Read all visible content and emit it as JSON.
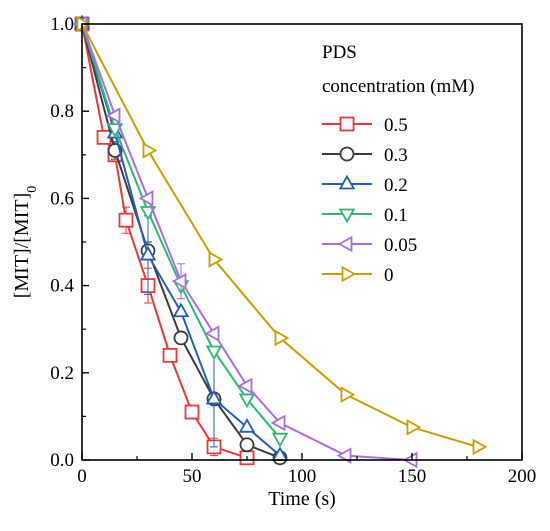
{
  "chart_data": {
    "type": "line",
    "xlabel": "Time (s)",
    "ylabel_main": "[MIT]/[MIT]",
    "ylabel_sub": "0",
    "xlim": [
      0,
      200
    ],
    "ylim": [
      0,
      1.0
    ],
    "xticks": [
      0,
      50,
      100,
      150,
      200
    ],
    "yticks": [
      0.0,
      0.2,
      0.4,
      0.6,
      0.8,
      1.0
    ],
    "ytick_labels": [
      "0.0",
      "0.2",
      "0.4",
      "0.6",
      "0.8",
      "1.0"
    ],
    "legend": {
      "title_line1": "PDS",
      "title_line2": "concentration (mM)",
      "position": "top-right"
    },
    "series": [
      {
        "name": "0.5",
        "color": "#e8383b",
        "marker": "square",
        "x": [
          0,
          10,
          15,
          20,
          30,
          40,
          50,
          60,
          75
        ],
        "y": [
          1.0,
          0.74,
          0.7,
          0.55,
          0.4,
          0.24,
          0.11,
          0.03,
          0.005
        ],
        "err": [
          0,
          0,
          0,
          0.03,
          0.04,
          0,
          0,
          0.02,
          0
        ]
      },
      {
        "name": "0.3",
        "color": "#3c3c3c",
        "marker": "circle",
        "x": [
          0,
          15,
          30,
          45,
          60,
          75,
          90
        ],
        "y": [
          1.0,
          0.71,
          0.48,
          0.28,
          0.14,
          0.035,
          0.005
        ],
        "err": [
          0,
          0.02,
          0.02,
          0,
          0,
          0,
          0
        ]
      },
      {
        "name": "0.2",
        "color": "#1f5fbf",
        "marker": "triangle-up",
        "x": [
          0,
          15,
          30,
          45,
          60,
          75,
          90
        ],
        "y": [
          1.0,
          0.75,
          0.47,
          0.34,
          0.14,
          0.075,
          0.01
        ],
        "err": [
          0,
          0,
          0.09,
          0,
          0.11,
          0,
          0
        ]
      },
      {
        "name": "0.1",
        "color": "#2eb872",
        "marker": "triangle-down",
        "x": [
          0,
          15,
          30,
          45,
          60,
          75,
          90
        ],
        "y": [
          1.0,
          0.76,
          0.57,
          0.4,
          0.25,
          0.14,
          0.05
        ],
        "err": [
          0,
          0,
          0,
          0,
          0,
          0,
          0
        ]
      },
      {
        "name": "0.05",
        "color": "#a86fe0",
        "marker": "triangle-left",
        "x": [
          0,
          15,
          30,
          45,
          60,
          75,
          90,
          120,
          150
        ],
        "y": [
          1.0,
          0.79,
          0.6,
          0.41,
          0.29,
          0.17,
          0.085,
          0.01,
          0.0
        ],
        "err": [
          0,
          0,
          0,
          0.04,
          0,
          0,
          0,
          0,
          0
        ]
      },
      {
        "name": "0",
        "color": "#c8a000",
        "marker": "triangle-right",
        "x": [
          0,
          30,
          60,
          90,
          120,
          150,
          180
        ],
        "y": [
          1.0,
          0.71,
          0.46,
          0.28,
          0.15,
          0.075,
          0.03
        ],
        "err": [
          0,
          0,
          0,
          0,
          0,
          0,
          0
        ]
      }
    ]
  }
}
